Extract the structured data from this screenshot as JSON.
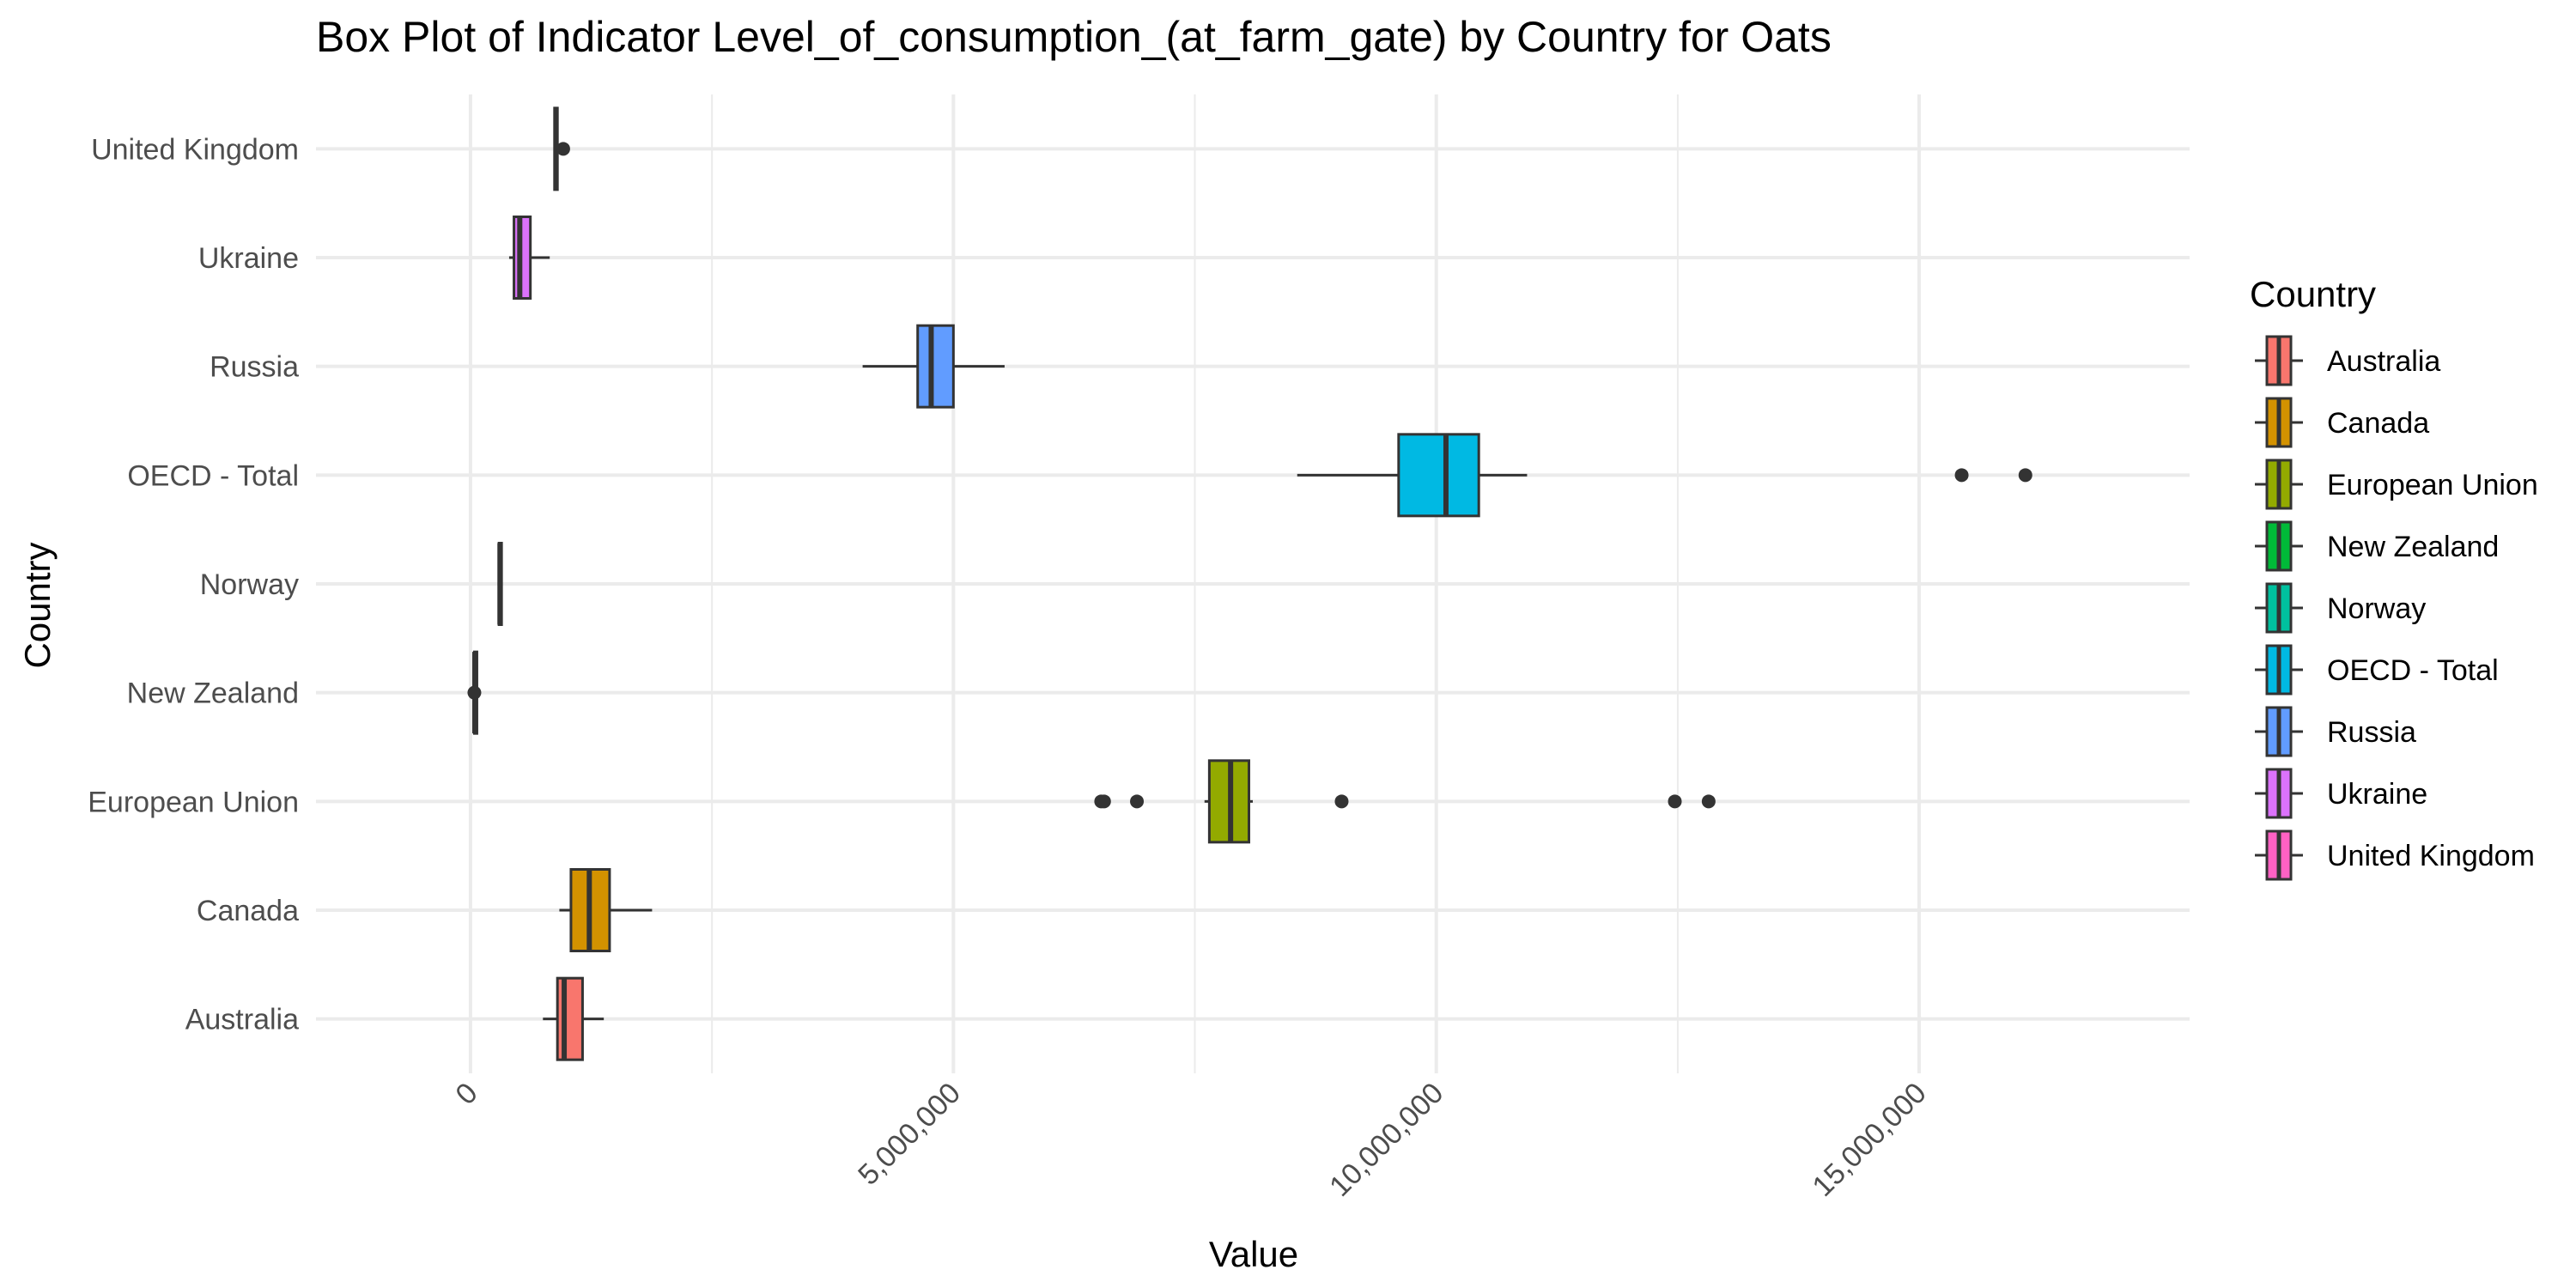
{
  "chart_data": {
    "type": "boxplot",
    "title": "Box Plot of Indicator Level_of_consumption_(at_farm_gate) by Country for Oats",
    "xlabel": "Value",
    "ylabel": "Country",
    "xlim": [
      -1600000,
      17800000
    ],
    "x_ticks": [
      0,
      5000000,
      10000000,
      15000000
    ],
    "x_tick_labels": [
      "0",
      "5,000,000",
      "10,000,000",
      "15,000,000"
    ],
    "x_minor_ticks": [
      2500000,
      7500000,
      12500000
    ],
    "grid": true,
    "legend": {
      "title": "Country",
      "placement": "right"
    },
    "series": [
      {
        "name": "Australia",
        "color": "#F8766D",
        "whisker_low": 750000,
        "q1": 900000,
        "median": 970000,
        "q3": 1160000,
        "whisker_high": 1380000,
        "outliers": []
      },
      {
        "name": "Canada",
        "color": "#D39200",
        "whisker_low": 920000,
        "q1": 1040000,
        "median": 1230000,
        "q3": 1440000,
        "whisker_high": 1880000,
        "outliers": []
      },
      {
        "name": "European Union",
        "color": "#93AA00",
        "whisker_low": 7600000,
        "q1": 7650000,
        "median": 7870000,
        "q3": 8060000,
        "whisker_high": 8100000,
        "outliers": [
          6530000,
          6560000,
          6900000,
          9020000,
          12470000,
          12820000
        ]
      },
      {
        "name": "New Zealand",
        "color": "#00BA38",
        "whisker_low": 30000,
        "q1": 40000,
        "median": 45000,
        "q3": 50000,
        "whisker_high": 60000,
        "outliers": [
          40000
        ]
      },
      {
        "name": "Norway",
        "color": "#00C19F",
        "whisker_low": 280000,
        "q1": 295000,
        "median": 305000,
        "q3": 315000,
        "whisker_high": 330000,
        "outliers": []
      },
      {
        "name": "OECD - Total",
        "color": "#00B9E3",
        "whisker_low": 8560000,
        "q1": 9610000,
        "median": 10100000,
        "q3": 10440000,
        "whisker_high": 10940000,
        "outliers": [
          15440000,
          16100000
        ]
      },
      {
        "name": "Russia",
        "color": "#619CFF",
        "whisker_low": 4060000,
        "q1": 4630000,
        "median": 4770000,
        "q3": 5000000,
        "whisker_high": 5530000,
        "outliers": []
      },
      {
        "name": "Ukraine",
        "color": "#DB72FB",
        "whisker_low": 400000,
        "q1": 450000,
        "median": 510000,
        "q3": 620000,
        "whisker_high": 820000,
        "outliers": []
      },
      {
        "name": "United Kingdom",
        "color": "#FF61C3",
        "whisker_low": 860000,
        "q1": 870000,
        "median": 885000,
        "q3": 900000,
        "whisker_high": 910000,
        "outliers": [
          960000
        ]
      }
    ]
  }
}
